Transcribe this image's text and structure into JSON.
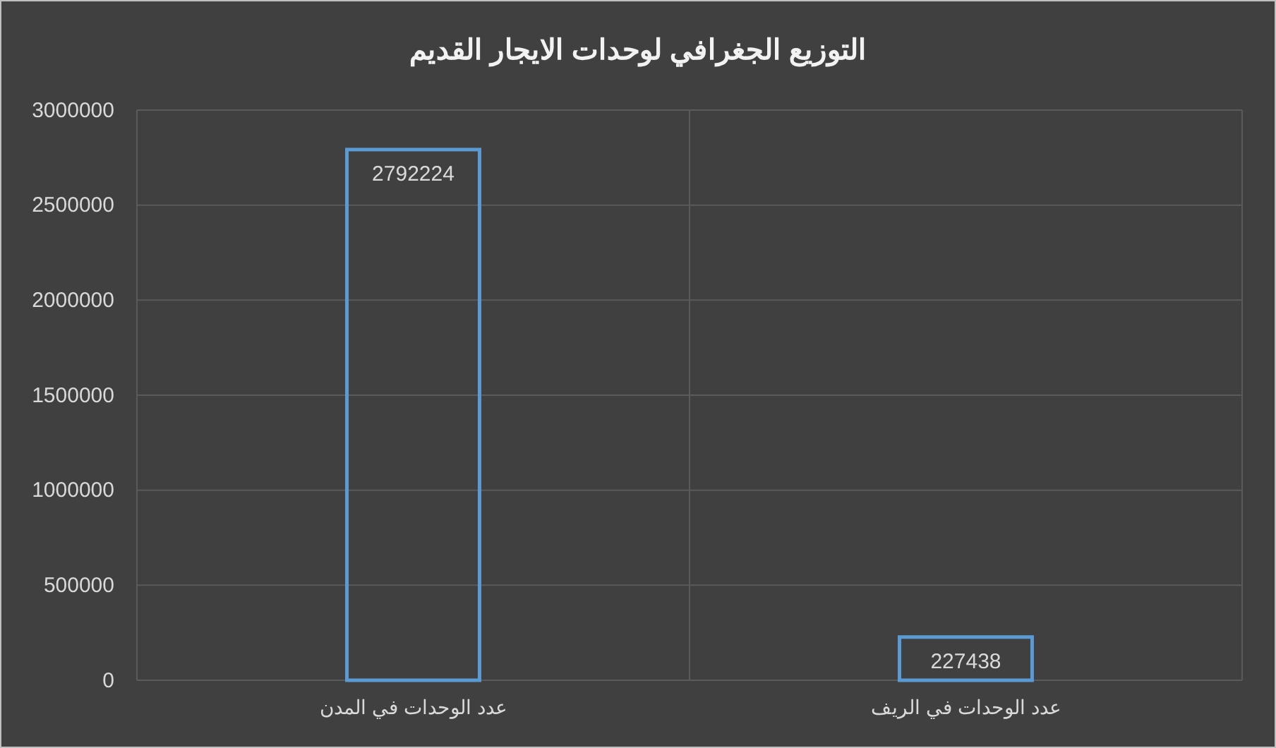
{
  "chart_data": {
    "type": "bar",
    "title": "التوزيع الجغرافي لوحدات الايجار القديم",
    "categories": [
      "عدد الوحدات في المدن",
      "عدد الوحدات في الريف"
    ],
    "values": [
      2792224,
      227438
    ],
    "color": "#5b9bd5",
    "ylim": [
      0,
      3000000
    ],
    "yticks": [
      0,
      500000,
      1000000,
      1500000,
      2000000,
      2500000,
      3000000
    ],
    "grid": true,
    "data_labels": true
  }
}
